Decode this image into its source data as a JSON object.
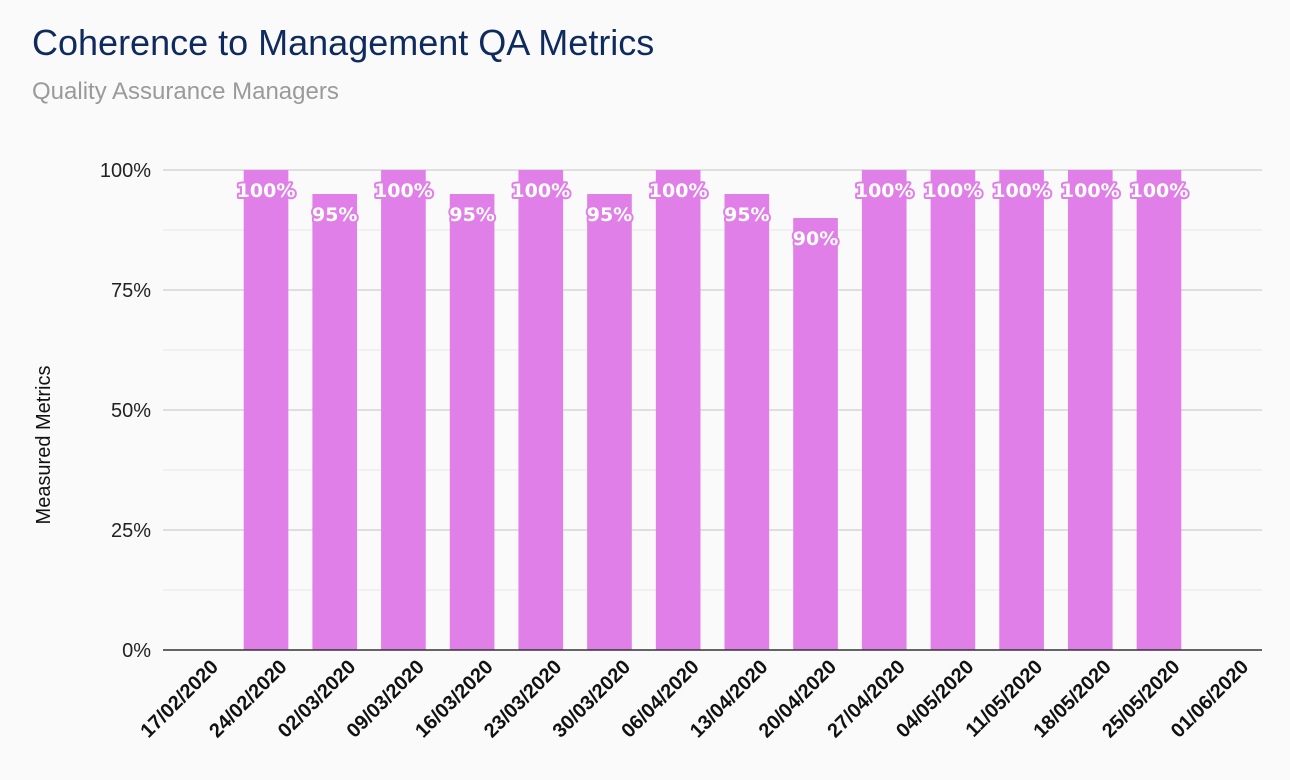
{
  "chart_data": {
    "type": "bar",
    "title": "Coherence to Management QA Metrics",
    "subtitle": "Quality Assurance Managers",
    "ylabel": "Measured Metrics",
    "xlabel": "",
    "ylim": [
      0,
      100
    ],
    "yticks": [
      0,
      25,
      50,
      75,
      100
    ],
    "ytick_labels": [
      "0%",
      "25%",
      "50%",
      "75%",
      "100%"
    ],
    "grid": true,
    "legend": "none",
    "bar_color": "#e07fe8",
    "categories": [
      "17/02/2020",
      "24/02/2020",
      "02/03/2020",
      "09/03/2020",
      "16/03/2020",
      "23/03/2020",
      "30/03/2020",
      "06/04/2020",
      "13/04/2020",
      "20/04/2020",
      "27/04/2020",
      "04/05/2020",
      "11/05/2020",
      "18/05/2020",
      "25/05/2020",
      "01/06/2020"
    ],
    "values": [
      null,
      100,
      95,
      100,
      95,
      100,
      95,
      100,
      95,
      90,
      100,
      100,
      100,
      100,
      100,
      null
    ],
    "data_labels": [
      "",
      "100%",
      "95%",
      "100%",
      "95%",
      "100%",
      "95%",
      "100%",
      "95%",
      "90%",
      "100%",
      "100%",
      "100%",
      "100%",
      "100%",
      ""
    ]
  }
}
